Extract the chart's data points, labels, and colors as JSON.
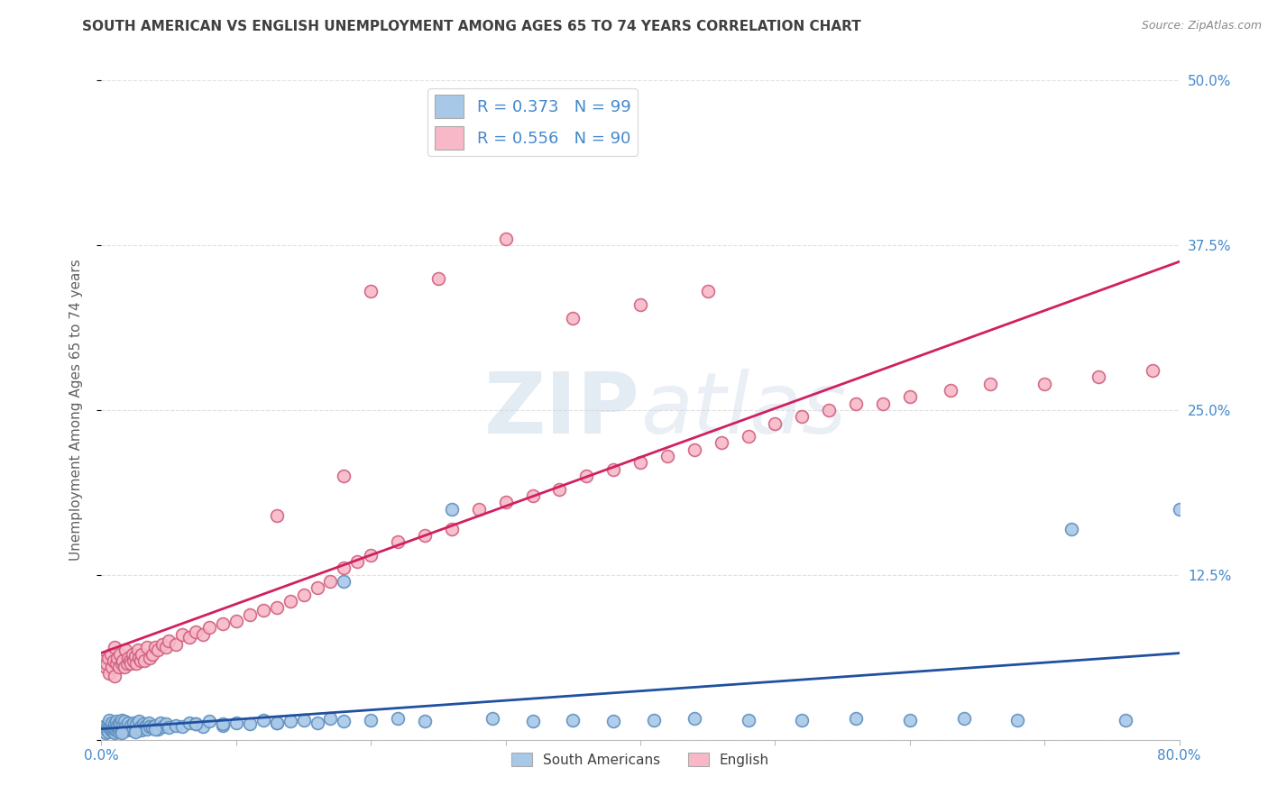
{
  "title": "SOUTH AMERICAN VS ENGLISH UNEMPLOYMENT AMONG AGES 65 TO 74 YEARS CORRELATION CHART",
  "source": "Source: ZipAtlas.com",
  "ylabel": "Unemployment Among Ages 65 to 74 years",
  "xlim": [
    0.0,
    0.8
  ],
  "ylim": [
    0.0,
    0.5
  ],
  "legend_entries": [
    {
      "label": "R = 0.373   N = 99",
      "color": "#a8c8e8"
    },
    {
      "label": "R = 0.556   N = 90",
      "color": "#f8b8c8"
    }
  ],
  "series": [
    {
      "name": "South Americans",
      "color": "#a8c8e8",
      "edge_color": "#6090c0",
      "trend_color": "#2050a0",
      "x": [
        0.002,
        0.003,
        0.004,
        0.005,
        0.005,
        0.006,
        0.006,
        0.007,
        0.007,
        0.008,
        0.008,
        0.009,
        0.009,
        0.01,
        0.01,
        0.01,
        0.011,
        0.011,
        0.012,
        0.012,
        0.013,
        0.013,
        0.014,
        0.014,
        0.015,
        0.015,
        0.016,
        0.016,
        0.017,
        0.017,
        0.018,
        0.019,
        0.02,
        0.02,
        0.021,
        0.022,
        0.023,
        0.024,
        0.025,
        0.026,
        0.027,
        0.028,
        0.029,
        0.03,
        0.031,
        0.032,
        0.033,
        0.034,
        0.035,
        0.036,
        0.038,
        0.04,
        0.042,
        0.044,
        0.046,
        0.048,
        0.05,
        0.055,
        0.06,
        0.065,
        0.07,
        0.075,
        0.08,
        0.09,
        0.1,
        0.11,
        0.12,
        0.13,
        0.14,
        0.15,
        0.16,
        0.17,
        0.18,
        0.2,
        0.22,
        0.24,
        0.26,
        0.29,
        0.32,
        0.35,
        0.38,
        0.41,
        0.44,
        0.48,
        0.52,
        0.56,
        0.6,
        0.64,
        0.68,
        0.72,
        0.76,
        0.8,
        0.18,
        0.13,
        0.09,
        0.07,
        0.04,
        0.025,
        0.015
      ],
      "y": [
        0.01,
        0.005,
        0.008,
        0.012,
        0.006,
        0.009,
        0.015,
        0.007,
        0.011,
        0.008,
        0.013,
        0.006,
        0.01,
        0.005,
        0.012,
        0.008,
        0.007,
        0.014,
        0.009,
        0.011,
        0.006,
        0.013,
        0.008,
        0.012,
        0.007,
        0.015,
        0.009,
        0.011,
        0.008,
        0.014,
        0.01,
        0.007,
        0.009,
        0.013,
        0.008,
        0.011,
        0.007,
        0.013,
        0.009,
        0.012,
        0.008,
        0.014,
        0.01,
        0.007,
        0.012,
        0.009,
        0.011,
        0.008,
        0.013,
        0.01,
        0.009,
        0.011,
        0.008,
        0.013,
        0.01,
        0.012,
        0.009,
        0.011,
        0.01,
        0.013,
        0.012,
        0.01,
        0.014,
        0.011,
        0.013,
        0.012,
        0.015,
        0.013,
        0.014,
        0.015,
        0.013,
        0.016,
        0.014,
        0.015,
        0.016,
        0.014,
        0.175,
        0.016,
        0.014,
        0.015,
        0.014,
        0.015,
        0.016,
        0.015,
        0.015,
        0.016,
        0.015,
        0.016,
        0.015,
        0.16,
        0.015,
        0.175,
        0.12,
        0.013,
        0.012,
        0.012,
        0.008,
        0.006,
        0.005
      ]
    },
    {
      "name": "English",
      "color": "#f8b8c8",
      "edge_color": "#d06080",
      "trend_color": "#d02060",
      "x": [
        0.002,
        0.003,
        0.004,
        0.005,
        0.006,
        0.007,
        0.008,
        0.009,
        0.01,
        0.01,
        0.011,
        0.012,
        0.013,
        0.014,
        0.015,
        0.016,
        0.017,
        0.018,
        0.019,
        0.02,
        0.021,
        0.022,
        0.023,
        0.024,
        0.025,
        0.026,
        0.027,
        0.028,
        0.029,
        0.03,
        0.032,
        0.034,
        0.036,
        0.038,
        0.04,
        0.042,
        0.045,
        0.048,
        0.05,
        0.055,
        0.06,
        0.065,
        0.07,
        0.075,
        0.08,
        0.09,
        0.1,
        0.11,
        0.12,
        0.13,
        0.14,
        0.15,
        0.16,
        0.17,
        0.18,
        0.19,
        0.2,
        0.22,
        0.24,
        0.26,
        0.28,
        0.3,
        0.32,
        0.34,
        0.36,
        0.38,
        0.4,
        0.42,
        0.44,
        0.46,
        0.48,
        0.5,
        0.52,
        0.54,
        0.56,
        0.58,
        0.6,
        0.63,
        0.66,
        0.7,
        0.74,
        0.78,
        0.2,
        0.25,
        0.3,
        0.35,
        0.4,
        0.45,
        0.18,
        0.13
      ],
      "y": [
        0.06,
        0.055,
        0.058,
        0.062,
        0.05,
        0.065,
        0.055,
        0.06,
        0.048,
        0.07,
        0.058,
        0.062,
        0.055,
        0.065,
        0.058,
        0.06,
        0.055,
        0.068,
        0.058,
        0.062,
        0.06,
        0.058,
        0.065,
        0.06,
        0.063,
        0.058,
        0.068,
        0.062,
        0.06,
        0.065,
        0.06,
        0.07,
        0.062,
        0.065,
        0.07,
        0.068,
        0.072,
        0.07,
        0.075,
        0.072,
        0.08,
        0.078,
        0.082,
        0.08,
        0.085,
        0.088,
        0.09,
        0.095,
        0.098,
        0.1,
        0.105,
        0.11,
        0.115,
        0.12,
        0.13,
        0.135,
        0.14,
        0.15,
        0.155,
        0.16,
        0.175,
        0.18,
        0.185,
        0.19,
        0.2,
        0.205,
        0.21,
        0.215,
        0.22,
        0.225,
        0.23,
        0.24,
        0.245,
        0.25,
        0.255,
        0.255,
        0.26,
        0.265,
        0.27,
        0.27,
        0.275,
        0.28,
        0.34,
        0.35,
        0.38,
        0.32,
        0.33,
        0.34,
        0.2,
        0.17
      ]
    }
  ],
  "watermark_zip": "ZIP",
  "watermark_atlas": "atlas",
  "background_color": "#ffffff",
  "grid_color": "#dddddd",
  "title_color": "#404040",
  "axis_label_color": "#606060",
  "tick_label_color": "#4488cc",
  "source_color": "#888888"
}
